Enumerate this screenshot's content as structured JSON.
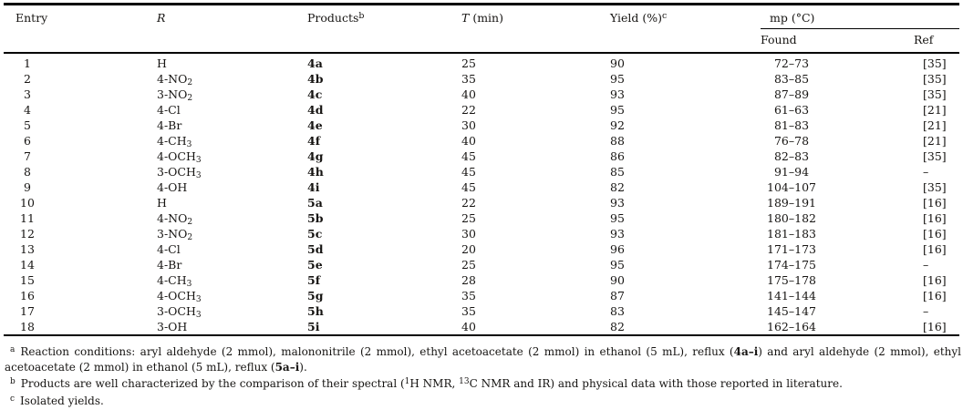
{
  "table": {
    "header": {
      "entry": "Entry",
      "r": "R",
      "products": {
        "label": "Products",
        "sup": "b"
      },
      "t": {
        "italic": "T",
        "rest": " (min)"
      },
      "yield": {
        "label": "Yield (%)",
        "sup": "c"
      },
      "mp": "mp (°C)",
      "found": "Found",
      "ref": "Ref"
    },
    "rows": [
      {
        "entry": "1",
        "r_base": "H",
        "r_sub": "",
        "product": "4a",
        "t": "25",
        "yield": "90",
        "mp_found": "72–73",
        "ref": "[35]"
      },
      {
        "entry": "2",
        "r_base": "4-NO",
        "r_sub": "2",
        "product": "4b",
        "t": "35",
        "yield": "95",
        "mp_found": "83–85",
        "ref": "[35]"
      },
      {
        "entry": "3",
        "r_base": "3-NO",
        "r_sub": "2",
        "product": "4c",
        "t": "40",
        "yield": "93",
        "mp_found": "87–89",
        "ref": "[35]"
      },
      {
        "entry": "4",
        "r_base": "4-Cl",
        "r_sub": "",
        "product": "4d",
        "t": "22",
        "yield": "95",
        "mp_found": "61–63",
        "ref": "[21]"
      },
      {
        "entry": "5",
        "r_base": "4-Br",
        "r_sub": "",
        "product": "4e",
        "t": "30",
        "yield": "92",
        "mp_found": "81–83",
        "ref": "[21]"
      },
      {
        "entry": "6",
        "r_base": "4-CH",
        "r_sub": "3",
        "product": "4f",
        "t": "40",
        "yield": "88",
        "mp_found": "76–78",
        "ref": "[21]"
      },
      {
        "entry": "7",
        "r_base": "4-OCH",
        "r_sub": "3",
        "product": "4g",
        "t": "45",
        "yield": "86",
        "mp_found": "82–83",
        "ref": "[35]"
      },
      {
        "entry": "8",
        "r_base": "3-OCH",
        "r_sub": "3",
        "product": "4h",
        "t": "45",
        "yield": "85",
        "mp_found": "91–94",
        "ref": "–"
      },
      {
        "entry": "9",
        "r_base": "4-OH",
        "r_sub": "",
        "product": "4i",
        "t": "45",
        "yield": "82",
        "mp_found": "104–107",
        "ref": "[35]"
      },
      {
        "entry": "10",
        "r_base": "H",
        "r_sub": "",
        "product": "5a",
        "t": "22",
        "yield": "93",
        "mp_found": "189–191",
        "ref": "[16]"
      },
      {
        "entry": "11",
        "r_base": "4-NO",
        "r_sub": "2",
        "product": "5b",
        "t": "25",
        "yield": "95",
        "mp_found": "180–182",
        "ref": "[16]"
      },
      {
        "entry": "12",
        "r_base": "3-NO",
        "r_sub": "2",
        "product": "5c",
        "t": "30",
        "yield": "93",
        "mp_found": "181–183",
        "ref": "[16]"
      },
      {
        "entry": "13",
        "r_base": "4-Cl",
        "r_sub": "",
        "product": "5d",
        "t": "20",
        "yield": "96",
        "mp_found": "171–173",
        "ref": "[16]"
      },
      {
        "entry": "14",
        "r_base": "4-Br",
        "r_sub": "",
        "product": "5e",
        "t": "25",
        "yield": "95",
        "mp_found": "174–175",
        "ref": "–"
      },
      {
        "entry": "15",
        "r_base": "4-CH",
        "r_sub": "3",
        "product": "5f",
        "t": "28",
        "yield": "90",
        "mp_found": "175–178",
        "ref": "[16]"
      },
      {
        "entry": "16",
        "r_base": "4-OCH",
        "r_sub": "3",
        "product": "5g",
        "t": "35",
        "yield": "87",
        "mp_found": "141–144",
        "ref": "[16]"
      },
      {
        "entry": "17",
        "r_base": "3-OCH",
        "r_sub": "3",
        "product": "5h",
        "t": "35",
        "yield": "83",
        "mp_found": "145–147",
        "ref": "–"
      },
      {
        "entry": "18",
        "r_base": "3-OH",
        "r_sub": "",
        "product": "5i",
        "t": "40",
        "yield": "82",
        "mp_found": "162–164",
        "ref": "[16]"
      }
    ]
  },
  "footnotes": {
    "a": {
      "marker": "a",
      "line1": {
        "p0": "Reaction conditions: aryl aldehyde (2 mmol), malononitrile (2 mmol), ethyl acetoacetate (2 mmol) in ethanol (5 mL), reflux (",
        "p1": "4a–i",
        "p2": ") and aryl aldehyde (2 mmol), ethyl"
      },
      "line2": {
        "p0": "acetoacetate (2 mmol) in ethanol (5 mL), reflux (",
        "p1": "5a–i",
        "p2": ")."
      }
    },
    "b": {
      "marker": "b",
      "p0": "Products are well characterized by the comparison of their spectral (",
      "sup1": "1",
      "p1": "H NMR, ",
      "sup2": "13",
      "p2": "C NMR and IR) and physical data with those reported in literature."
    },
    "c": {
      "marker": "c",
      "p0": "Isolated yields."
    }
  }
}
